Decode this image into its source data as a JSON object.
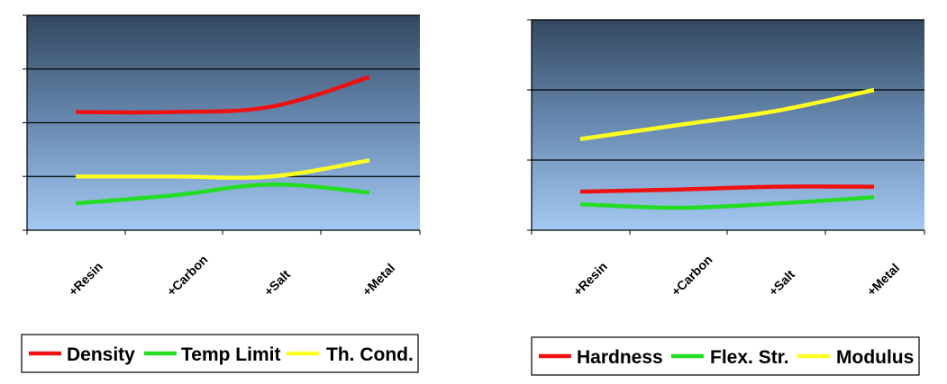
{
  "chart_data": [
    {
      "type": "line",
      "categories": [
        "+Resin",
        "+Carbon",
        "+Salt",
        "+Metal"
      ],
      "ylim": [
        0,
        4
      ],
      "grid": true,
      "legend": "bottom",
      "series": [
        {
          "name": "Density",
          "color": "#ee1111",
          "values": [
            2.2,
            2.2,
            2.3,
            2.85
          ]
        },
        {
          "name": "Temp Limit",
          "color": "#22dd22",
          "values": [
            0.5,
            0.65,
            0.85,
            0.7
          ]
        },
        {
          "name": "Th. Cond.",
          "color": "#ffff22",
          "values": [
            1.0,
            1.0,
            1.0,
            1.3
          ]
        }
      ]
    },
    {
      "type": "line",
      "categories": [
        "+Resin",
        "+Carbon",
        "+Salt",
        "+Metal"
      ],
      "ylim": [
        0,
        3
      ],
      "grid": true,
      "legend": "bottom",
      "series": [
        {
          "name": "Hardness",
          "color": "#ee1111",
          "values": [
            0.55,
            0.58,
            0.62,
            0.62
          ]
        },
        {
          "name": "Flex. Str.",
          "color": "#22dd22",
          "values": [
            0.37,
            0.32,
            0.38,
            0.47
          ]
        },
        {
          "name": "Modulus",
          "color": "#ffff22",
          "values": [
            1.3,
            1.5,
            1.7,
            2.0
          ]
        }
      ]
    }
  ]
}
